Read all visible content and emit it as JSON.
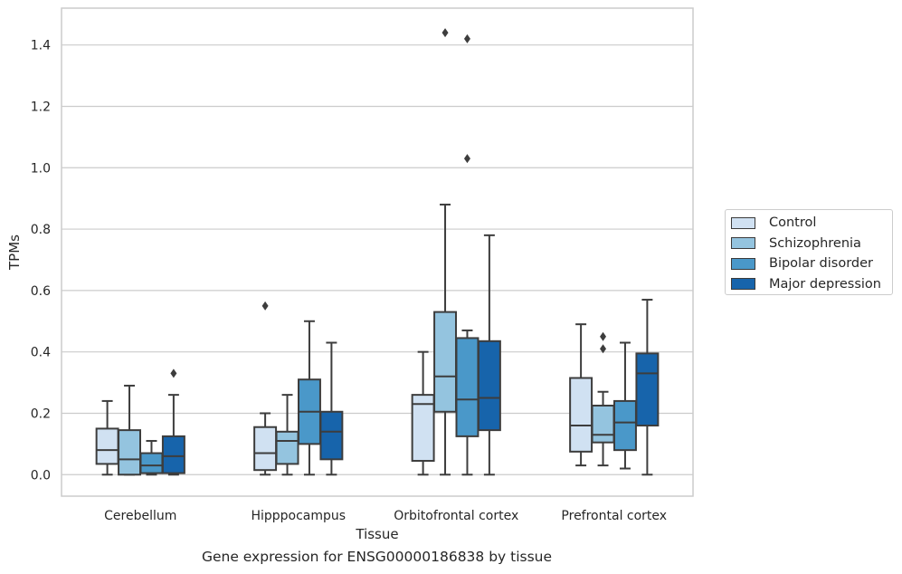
{
  "caption": "Gene expression for ENSG00000186838 by tissue",
  "chart_data": {
    "type": "box",
    "xlabel": "Tissue",
    "ylabel": "TPMs",
    "ylim": [
      -0.07,
      1.52
    ],
    "yticks": [
      0.0,
      0.2,
      0.4,
      0.6,
      0.8,
      1.0,
      1.2,
      1.4
    ],
    "ytick_labels": [
      "0.0",
      "0.2",
      "0.4",
      "0.6",
      "0.8",
      "1.0",
      "1.2",
      "1.4"
    ],
    "grid": "horizontal",
    "legend_position": "right",
    "categories": [
      "Cerebellum",
      "Hipppocampus",
      "Orbitofrontal cortex",
      "Prefrontal cortex"
    ],
    "series": [
      {
        "name": "Control",
        "color": "#d0e1f2",
        "boxes": [
          {
            "whislo": 0.0,
            "q1": 0.035,
            "med": 0.08,
            "q3": 0.15,
            "whishi": 0.24,
            "fliers": []
          },
          {
            "whislo": 0.0,
            "q1": 0.015,
            "med": 0.07,
            "q3": 0.155,
            "whishi": 0.2,
            "fliers": [
              0.55
            ]
          },
          {
            "whislo": 0.0,
            "q1": 0.045,
            "med": 0.23,
            "q3": 0.26,
            "whishi": 0.4,
            "fliers": []
          },
          {
            "whislo": 0.03,
            "q1": 0.075,
            "med": 0.16,
            "q3": 0.315,
            "whishi": 0.49,
            "fliers": []
          }
        ]
      },
      {
        "name": "Schizophrenia",
        "color": "#94c4df",
        "boxes": [
          {
            "whislo": 0.0,
            "q1": 0.0,
            "med": 0.05,
            "q3": 0.145,
            "whishi": 0.29,
            "fliers": []
          },
          {
            "whislo": 0.0,
            "q1": 0.035,
            "med": 0.11,
            "q3": 0.14,
            "whishi": 0.26,
            "fliers": []
          },
          {
            "whislo": 0.0,
            "q1": 0.205,
            "med": 0.32,
            "q3": 0.53,
            "whishi": 0.88,
            "fliers": [
              1.44
            ]
          },
          {
            "whislo": 0.03,
            "q1": 0.105,
            "med": 0.13,
            "q3": 0.225,
            "whishi": 0.27,
            "fliers": [
              0.41,
              0.45
            ]
          }
        ]
      },
      {
        "name": "Bipolar disorder",
        "color": "#4a98c9",
        "boxes": [
          {
            "whislo": 0.0,
            "q1": 0.005,
            "med": 0.03,
            "q3": 0.07,
            "whishi": 0.11,
            "fliers": []
          },
          {
            "whislo": 0.0,
            "q1": 0.1,
            "med": 0.205,
            "q3": 0.31,
            "whishi": 0.5,
            "fliers": []
          },
          {
            "whislo": 0.0,
            "q1": 0.125,
            "med": 0.245,
            "q3": 0.445,
            "whishi": 0.47,
            "fliers": [
              1.03,
              1.42
            ]
          },
          {
            "whislo": 0.02,
            "q1": 0.08,
            "med": 0.17,
            "q3": 0.24,
            "whishi": 0.43,
            "fliers": []
          }
        ]
      },
      {
        "name": "Major depression",
        "color": "#1764ab",
        "boxes": [
          {
            "whislo": 0.0,
            "q1": 0.005,
            "med": 0.06,
            "q3": 0.125,
            "whishi": 0.26,
            "fliers": [
              0.33
            ]
          },
          {
            "whislo": 0.0,
            "q1": 0.05,
            "med": 0.14,
            "q3": 0.205,
            "whishi": 0.43,
            "fliers": []
          },
          {
            "whislo": 0.0,
            "q1": 0.145,
            "med": 0.25,
            "q3": 0.435,
            "whishi": 0.78,
            "fliers": []
          },
          {
            "whislo": 0.0,
            "q1": 0.16,
            "med": 0.33,
            "q3": 0.395,
            "whishi": 0.57,
            "fliers": []
          }
        ]
      }
    ]
  }
}
